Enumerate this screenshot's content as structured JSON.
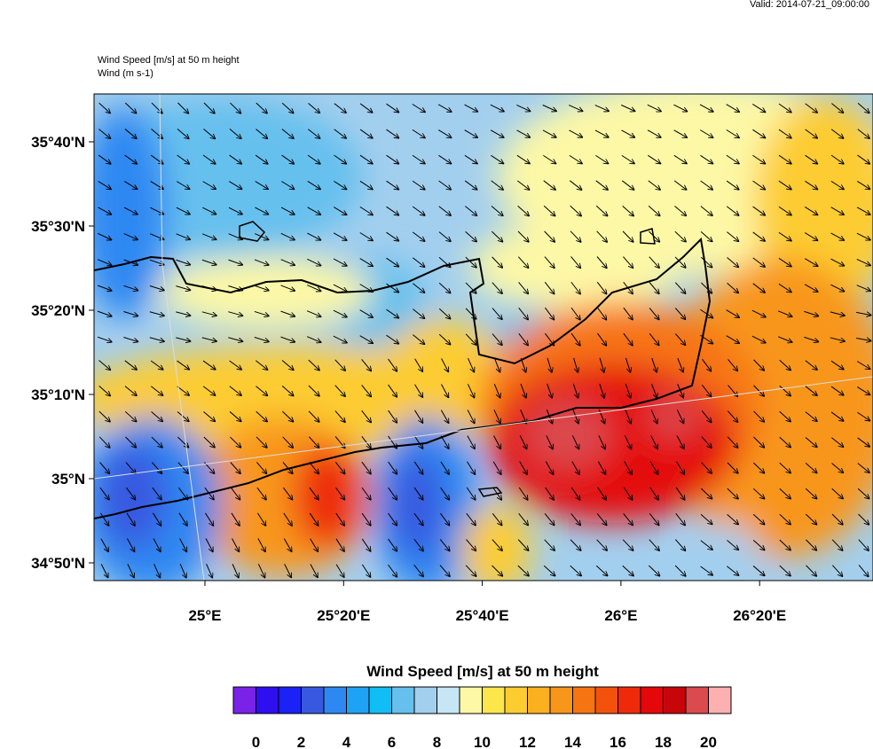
{
  "header": {
    "valid": "Valid: 2014-07-21_09:00:00",
    "title": "Wind Speed [m/s] at 50 m height",
    "subtitle": "Wind   (m s-1)"
  },
  "map": {
    "lat_labels": [
      "35°40'N",
      "35°30'N",
      "35°20'N",
      "35°10'N",
      "35°N",
      "34°50'N"
    ],
    "lon_labels": [
      "25°E",
      "25°20'E",
      "25°40'E",
      "26°E",
      "26°20'E"
    ]
  },
  "colorbar": {
    "title": "Wind Speed [m/s] at 50 m height",
    "colors": [
      "#7a22e8",
      "#2e0ff0",
      "#1a22f5",
      "#3858e0",
      "#2d88f2",
      "#1ea2f5",
      "#10bdf5",
      "#66c0ee",
      "#a3cfee",
      "#c6e6f6",
      "#fdf8a6",
      "#fde64c",
      "#fdcc30",
      "#fbb020",
      "#f8961a",
      "#f77412",
      "#f3520c",
      "#ee2a0a",
      "#e4080a",
      "#c7060a",
      "#da4a4e",
      "#fdb0b0"
    ],
    "ticks": [
      0,
      2,
      4,
      6,
      8,
      10,
      12,
      14,
      16,
      18,
      20
    ]
  }
}
